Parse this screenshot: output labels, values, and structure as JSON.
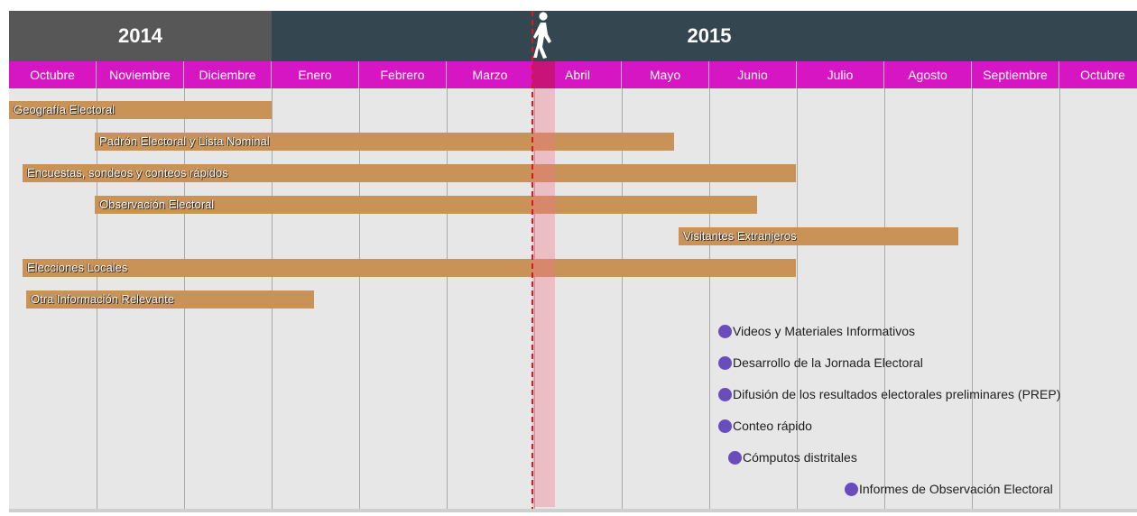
{
  "chart_data": {
    "type": "gantt",
    "years": [
      {
        "label": "2014",
        "start_month": 0,
        "end_month": 3,
        "color": "#575757"
      },
      {
        "label": "2015",
        "start_month": 3,
        "end_month": 13,
        "color": "#34464f"
      }
    ],
    "months": [
      "Octubre",
      "Noviembre",
      "Diciembre",
      "Enero",
      "Febrero",
      "Marzo",
      "Abril",
      "Mayo",
      "Junio",
      "Julio",
      "Agosto",
      "Septiembre",
      "Octubre"
    ],
    "today_month": 5.98,
    "tasks": [
      {
        "label": "Geografía Electoral",
        "start": 0.0,
        "end": 3.0
      },
      {
        "label": "Padrón Electoral y Lista Nominal",
        "start": 0.98,
        "end": 7.6
      },
      {
        "label": "Encuestas, sondeos y conteos rápidos",
        "start": 0.15,
        "end": 8.99
      },
      {
        "label": "Observación Electoral",
        "start": 0.98,
        "end": 8.55
      },
      {
        "label": "Visitantes Extranjeros",
        "start": 7.65,
        "end": 10.85
      },
      {
        "label": "Elecciones Locales",
        "start": 0.15,
        "end": 8.99
      },
      {
        "label": "Otra Información Relevante",
        "start": 0.2,
        "end": 3.48
      }
    ],
    "milestones": [
      {
        "label": "Videos y Materiales Informativos",
        "date": 8.1
      },
      {
        "label": "Desarrollo de la Jornada Electoral",
        "date": 8.1
      },
      {
        "label": "Difusión de los resultados electorales preliminares (PREP)",
        "date": 8.1
      },
      {
        "label": "Conteo rápido",
        "date": 8.1
      },
      {
        "label": "Cómputos distritales",
        "date": 8.22
      },
      {
        "label": "Informes de Observación Electoral",
        "date": 9.55
      }
    ],
    "colors": {
      "month_row": "#d616c3",
      "task_bar": "#c99257",
      "milestone_dot": "#6a4dbd",
      "today_line": "#e0161e",
      "background": "#e8e7e7"
    },
    "icons": {
      "today_marker": "walking-person-icon"
    }
  }
}
